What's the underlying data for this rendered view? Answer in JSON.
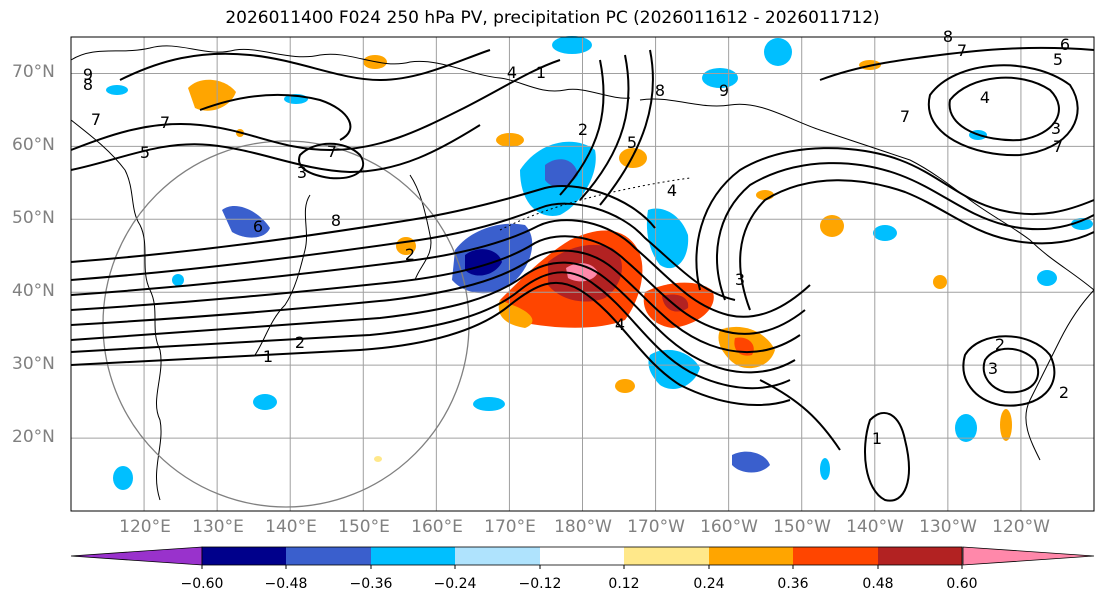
{
  "title": "2026011400 F024 250 hPa PV, precipitation PC (2026011612 - 2026011712)",
  "map": {
    "lat_labels": [
      "70°N",
      "60°N",
      "50°N",
      "40°N",
      "30°N",
      "20°N"
    ],
    "lon_labels": [
      "120°E",
      "130°E",
      "140°E",
      "150°E",
      "160°E",
      "170°E",
      "180°W",
      "170°W",
      "160°W",
      "150°W",
      "140°W",
      "130°W",
      "120°W"
    ],
    "lat_range": [
      10,
      75
    ],
    "lon_range": [
      110,
      250
    ],
    "contour_labels": [
      "9",
      "8",
      "7",
      "7",
      "5",
      "2",
      "1",
      "8",
      "6",
      "3",
      "7",
      "1",
      "2",
      "4",
      "4",
      "3",
      "1",
      "2",
      "8",
      "9",
      "5",
      "7",
      "8",
      "7",
      "6",
      "5",
      "7",
      "4",
      "3",
      "2",
      "3",
      "4",
      "2"
    ],
    "gridlines": true,
    "coastlines": true
  },
  "colorbar": {
    "ticks": [
      "−0.60",
      "−0.48",
      "−0.36",
      "−0.24",
      "−0.12",
      "0.12",
      "0.24",
      "0.36",
      "0.48",
      "0.60"
    ],
    "colors": [
      "#9932cc",
      "#00008b",
      "#3a5fcd",
      "#00bfff",
      "#afe3fd",
      "#ffffff",
      "#ffe88a",
      "#ffa500",
      "#ff4500",
      "#b22222",
      "#ff88aa",
      "#ff88aa"
    ],
    "extend": "both"
  }
}
